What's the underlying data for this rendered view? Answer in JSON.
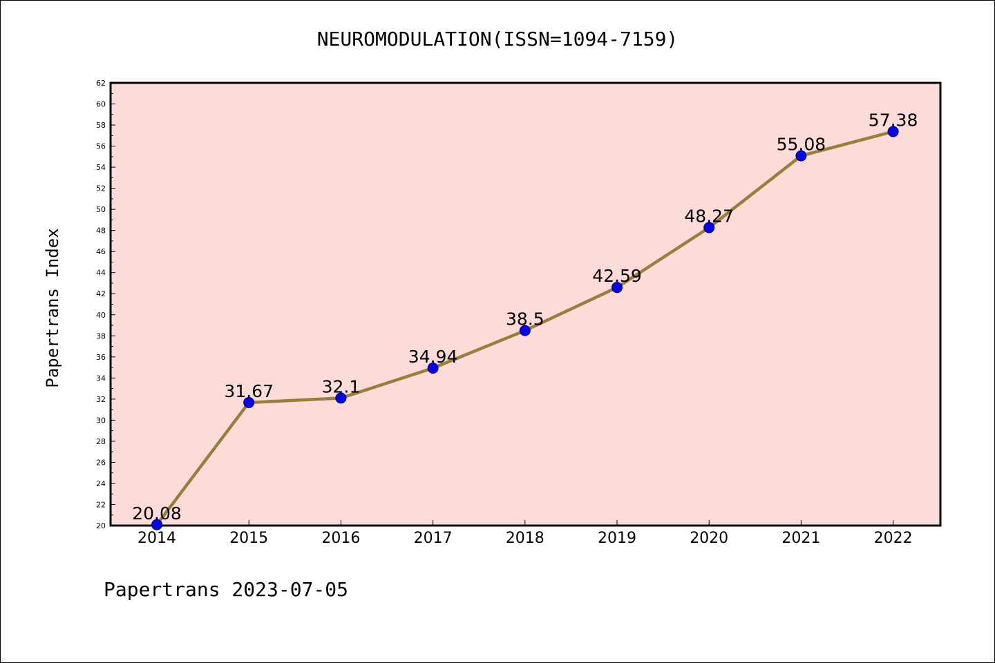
{
  "chart_data": {
    "type": "line",
    "title": "NEUROMODULATION(ISSN=1094-7159)",
    "xlabel": "",
    "ylabel": "Papertrans Index",
    "categories": [
      "2014",
      "2015",
      "2016",
      "2017",
      "2018",
      "2019",
      "2020",
      "2021",
      "2022"
    ],
    "values": [
      20.08,
      31.67,
      32.1,
      34.94,
      38.5,
      42.59,
      48.27,
      55.08,
      57.38
    ],
    "data_labels": [
      "20.08",
      "31.67",
      "32.1",
      "34.94",
      "38.5",
      "42.59",
      "48.27",
      "55.08",
      "57.38"
    ],
    "ylim": [
      20,
      62
    ],
    "yticks": [
      "20",
      "22",
      "24",
      "26",
      "28",
      "30",
      "32",
      "34",
      "36",
      "38",
      "40",
      "42",
      "44",
      "46",
      "48",
      "50",
      "52",
      "54",
      "56",
      "58",
      "60",
      "62"
    ],
    "grid": false,
    "line_color": "#9a7f3a",
    "marker_color": "#0000ff",
    "plot_background": "#fddbd8"
  },
  "footer": "Papertrans 2023-07-05"
}
